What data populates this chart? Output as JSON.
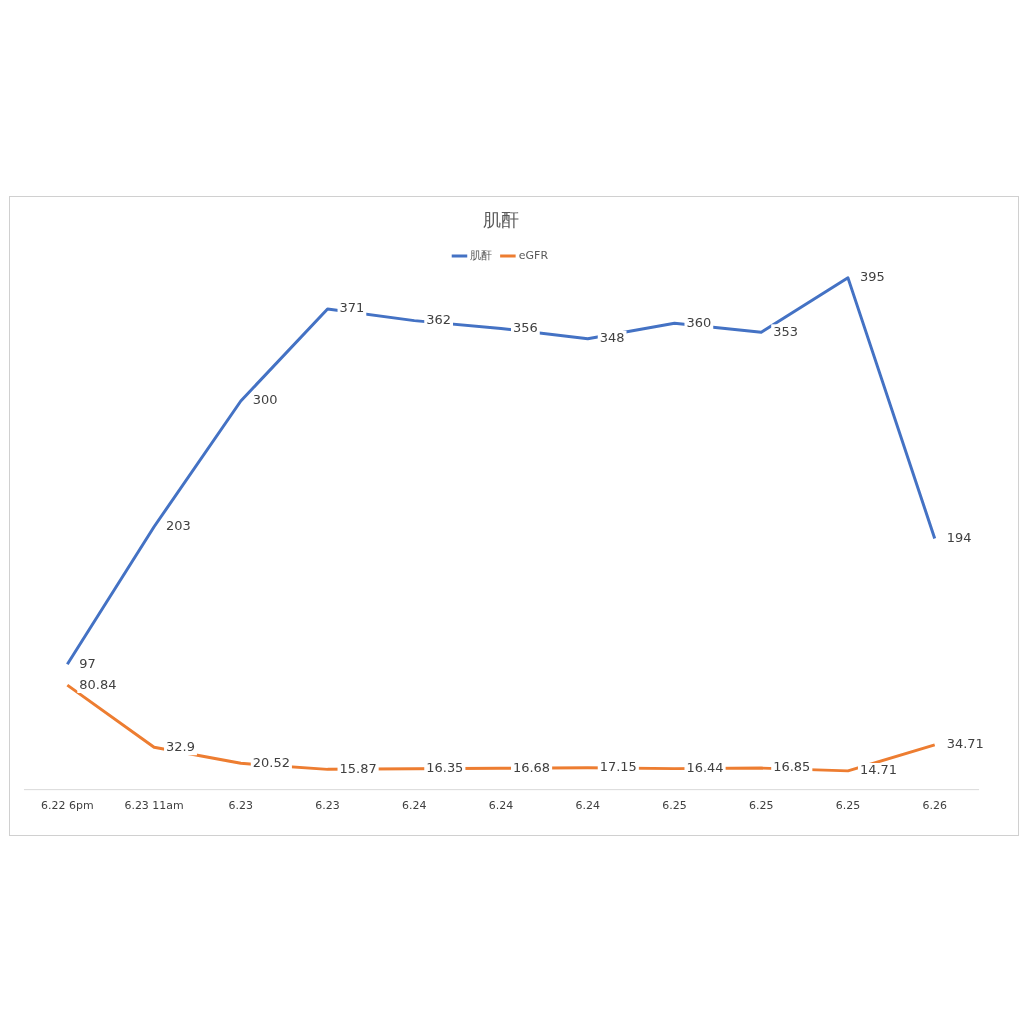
{
  "chart_data": {
    "type": "line",
    "title": "肌酐",
    "categories": [
      "6.22 6pm",
      "6.23 11am",
      "6.23",
      "6.23",
      "6.24",
      "6.24",
      "6.24",
      "6.25",
      "6.25",
      "6.25",
      "6.26"
    ],
    "series": [
      {
        "name": "肌酐",
        "color": "#4472c4",
        "values": [
          97,
          203,
          300,
          371,
          362,
          356,
          348,
          360,
          353,
          395,
          194
        ]
      },
      {
        "name": "eGFR",
        "color": "#ed7d31",
        "values": [
          80.84,
          32.9,
          20.52,
          15.87,
          16.35,
          16.68,
          17.15,
          16.44,
          16.85,
          14.71,
          34.71
        ]
      }
    ],
    "data_labels": true,
    "legend": "top",
    "grid": false,
    "tick_labels": "x",
    "marker": "none",
    "line_style": "solid"
  }
}
